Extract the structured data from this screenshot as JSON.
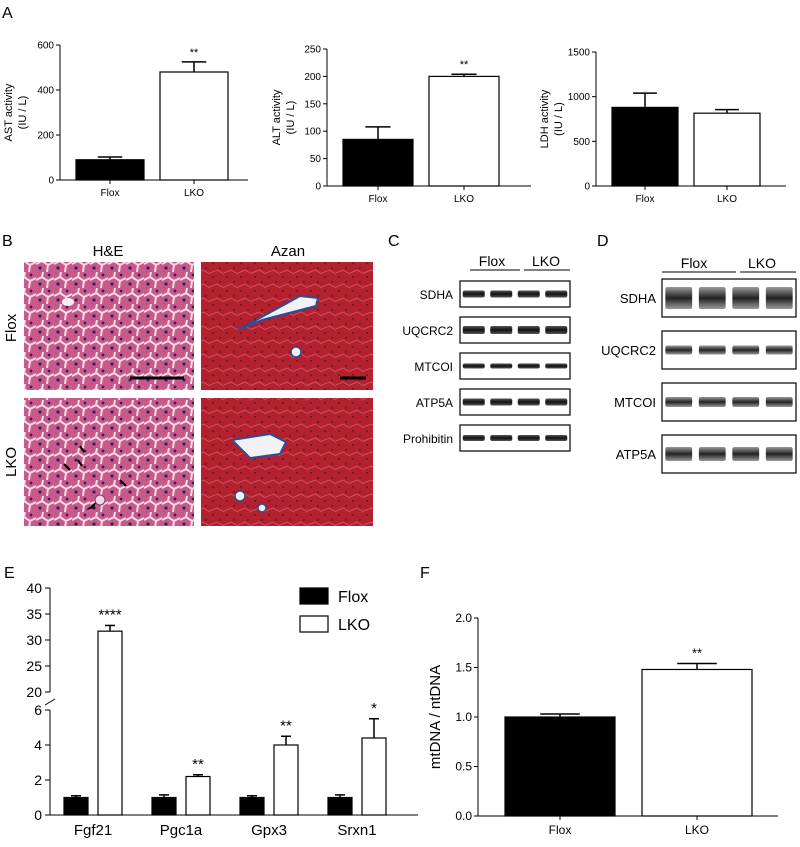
{
  "panel_letters": {
    "a": "A",
    "b": "B",
    "c": "C",
    "d": "D",
    "e": "E",
    "f": "F"
  },
  "chart_data": [
    {
      "panel": "A1",
      "type": "bar",
      "categories": [
        "Flox",
        "LKO"
      ],
      "values": [
        90,
        480
      ],
      "errors": [
        12,
        45
      ],
      "colors": [
        "#000000",
        "#ffffff"
      ],
      "ylabel_line1": "AST activity",
      "ylabel_line2": "(IU / L)",
      "ylim": [
        0,
        600
      ],
      "yticks": [
        "0",
        "200",
        "400",
        "600"
      ],
      "ytick_values": [
        0,
        200,
        400,
        600
      ],
      "significance": [
        "",
        "**"
      ]
    },
    {
      "panel": "A2",
      "type": "bar",
      "categories": [
        "Flox",
        "LKO"
      ],
      "values": [
        85,
        200
      ],
      "errors": [
        23,
        4
      ],
      "colors": [
        "#000000",
        "#ffffff"
      ],
      "ylabel_line1": "ALT activity",
      "ylabel_line2": "(IU / L)",
      "ylim": [
        0,
        250
      ],
      "yticks": [
        "0",
        "50",
        "100",
        "150",
        "200",
        "250"
      ],
      "ytick_values": [
        0,
        50,
        100,
        150,
        200,
        250
      ],
      "significance": [
        "",
        "**"
      ]
    },
    {
      "panel": "A3",
      "type": "bar",
      "categories": [
        "Flox",
        "LKO"
      ],
      "values": [
        880,
        815
      ],
      "errors": [
        160,
        40
      ],
      "colors": [
        "#000000",
        "#ffffff"
      ],
      "ylabel_line1": "LDH activity",
      "ylabel_line2": "(IU / L)",
      "ylim": [
        0,
        1500
      ],
      "yticks": [
        "0",
        "500",
        "1000",
        "1500"
      ],
      "ytick_values": [
        0,
        500,
        1000,
        1500
      ],
      "significance": [
        "",
        ""
      ]
    },
    {
      "panel": "E",
      "type": "bar",
      "categories": [
        "Fgf21",
        "Pgc1a",
        "Gpx3",
        "Srxn1"
      ],
      "series": [
        {
          "name": "Flox",
          "values": [
            1.0,
            1.0,
            1.0,
            1.0
          ],
          "errors": [
            0.1,
            0.15,
            0.1,
            0.15
          ]
        },
        {
          "name": "LKO",
          "values": [
            31.7,
            2.2,
            4.0,
            4.4
          ],
          "errors": [
            1.1,
            0.1,
            0.5,
            1.1
          ]
        }
      ],
      "significance": [
        "****",
        "**",
        "**",
        "*"
      ],
      "yticks_lower": [
        "0",
        "2",
        "4",
        "6"
      ],
      "ytick_values_lower": [
        0,
        2,
        4,
        6
      ],
      "yticks_upper": [
        "20",
        "25",
        "30",
        "35",
        "40"
      ],
      "ytick_values_upper": [
        20,
        25,
        30,
        35,
        40
      ],
      "ylim_lower": [
        0,
        6
      ],
      "ylim_upper": [
        20,
        40
      ],
      "legend": {
        "placement": "top-right"
      }
    },
    {
      "panel": "F",
      "type": "bar",
      "categories": [
        "Flox",
        "LKO"
      ],
      "values": [
        1.0,
        1.48
      ],
      "errors": [
        0.03,
        0.06
      ],
      "colors": [
        "#000000",
        "#ffffff"
      ],
      "ylabel": "mtDNA / ntDNA",
      "ylim": [
        0,
        2.0
      ],
      "yticks": [
        "0.0",
        "0.5",
        "1.0",
        "1.5",
        "2.0"
      ],
      "ytick_values": [
        0,
        0.5,
        1.0,
        1.5,
        2.0
      ],
      "significance": [
        "",
        "**"
      ]
    }
  ],
  "histology": {
    "col_labels": [
      "H&E",
      "Azan"
    ],
    "row_labels": [
      "Flox",
      "LKO"
    ],
    "he_color": "#c75a8a",
    "azan_color": "#b3202e"
  },
  "blot_c": {
    "group_labels": [
      "Flox",
      "LKO"
    ],
    "bands": [
      "SDHA",
      "UQCRC2",
      "MTCOI",
      "ATP5A",
      "Prohibitin"
    ]
  },
  "blot_d": {
    "group_labels": [
      "Flox",
      "LKO"
    ],
    "bands": [
      "SDHA",
      "UQCRC2",
      "MTCOI",
      "ATP5A"
    ]
  }
}
